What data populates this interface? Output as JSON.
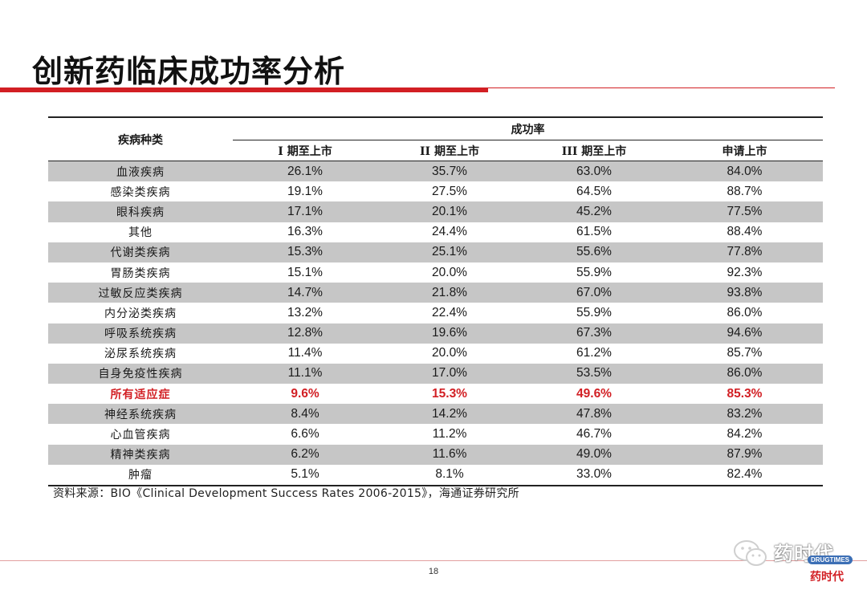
{
  "slide": {
    "title": "创新药临床成功率分析",
    "page_number": "18",
    "source_note": "资料来源：BIO《Clinical Development Success Rates 2006-2015》，海通证券研究所"
  },
  "table": {
    "category_header": "疾病种类",
    "group_header": "成功率",
    "column_headers": [
      "I 期至上市",
      "II 期至上市",
      "III 期至上市",
      "申请上市"
    ],
    "rows": [
      {
        "name": "血液疾病",
        "values": [
          "26.1%",
          "35.7%",
          "63.0%",
          "84.0%"
        ]
      },
      {
        "name": "感染类疾病",
        "values": [
          "19.1%",
          "27.5%",
          "64.5%",
          "88.7%"
        ]
      },
      {
        "name": "眼科疾病",
        "values": [
          "17.1%",
          "20.1%",
          "45.2%",
          "77.5%"
        ]
      },
      {
        "name": "其他",
        "values": [
          "16.3%",
          "24.4%",
          "61.5%",
          "88.4%"
        ]
      },
      {
        "name": "代谢类疾病",
        "values": [
          "15.3%",
          "25.1%",
          "55.6%",
          "77.8%"
        ]
      },
      {
        "name": "胃肠类疾病",
        "values": [
          "15.1%",
          "20.0%",
          "55.9%",
          "92.3%"
        ]
      },
      {
        "name": "过敏反应类疾病",
        "values": [
          "14.7%",
          "21.8%",
          "67.0%",
          "93.8%"
        ]
      },
      {
        "name": "内分泌类疾病",
        "values": [
          "13.2%",
          "22.4%",
          "55.9%",
          "86.0%"
        ]
      },
      {
        "name": "呼吸系统疾病",
        "values": [
          "12.8%",
          "19.6%",
          "67.3%",
          "94.6%"
        ]
      },
      {
        "name": "泌尿系统疾病",
        "values": [
          "11.4%",
          "20.0%",
          "61.2%",
          "85.7%"
        ]
      },
      {
        "name": "自身免疫性疾病",
        "values": [
          "11.1%",
          "17.0%",
          "53.5%",
          "86.0%"
        ]
      },
      {
        "name": "所有适应症",
        "values": [
          "9.6%",
          "15.3%",
          "49.6%",
          "85.3%"
        ],
        "highlight": true
      },
      {
        "name": "神经系统疾病",
        "values": [
          "8.4%",
          "14.2%",
          "47.8%",
          "83.2%"
        ]
      },
      {
        "name": "心血管疾病",
        "values": [
          "6.6%",
          "11.2%",
          "46.7%",
          "84.2%"
        ]
      },
      {
        "name": "精神类疾病",
        "values": [
          "6.2%",
          "11.6%",
          "49.0%",
          "87.9%"
        ]
      },
      {
        "name": "肿瘤",
        "values": [
          "5.1%",
          "8.1%",
          "33.0%",
          "82.4%"
        ]
      }
    ]
  },
  "watermark": {
    "name": "药时代",
    "badge": "DRUGTIMES",
    "sub": "药时代"
  },
  "colors": {
    "accent_red": "#d21f24",
    "row_shade": "#c6c6c6"
  }
}
